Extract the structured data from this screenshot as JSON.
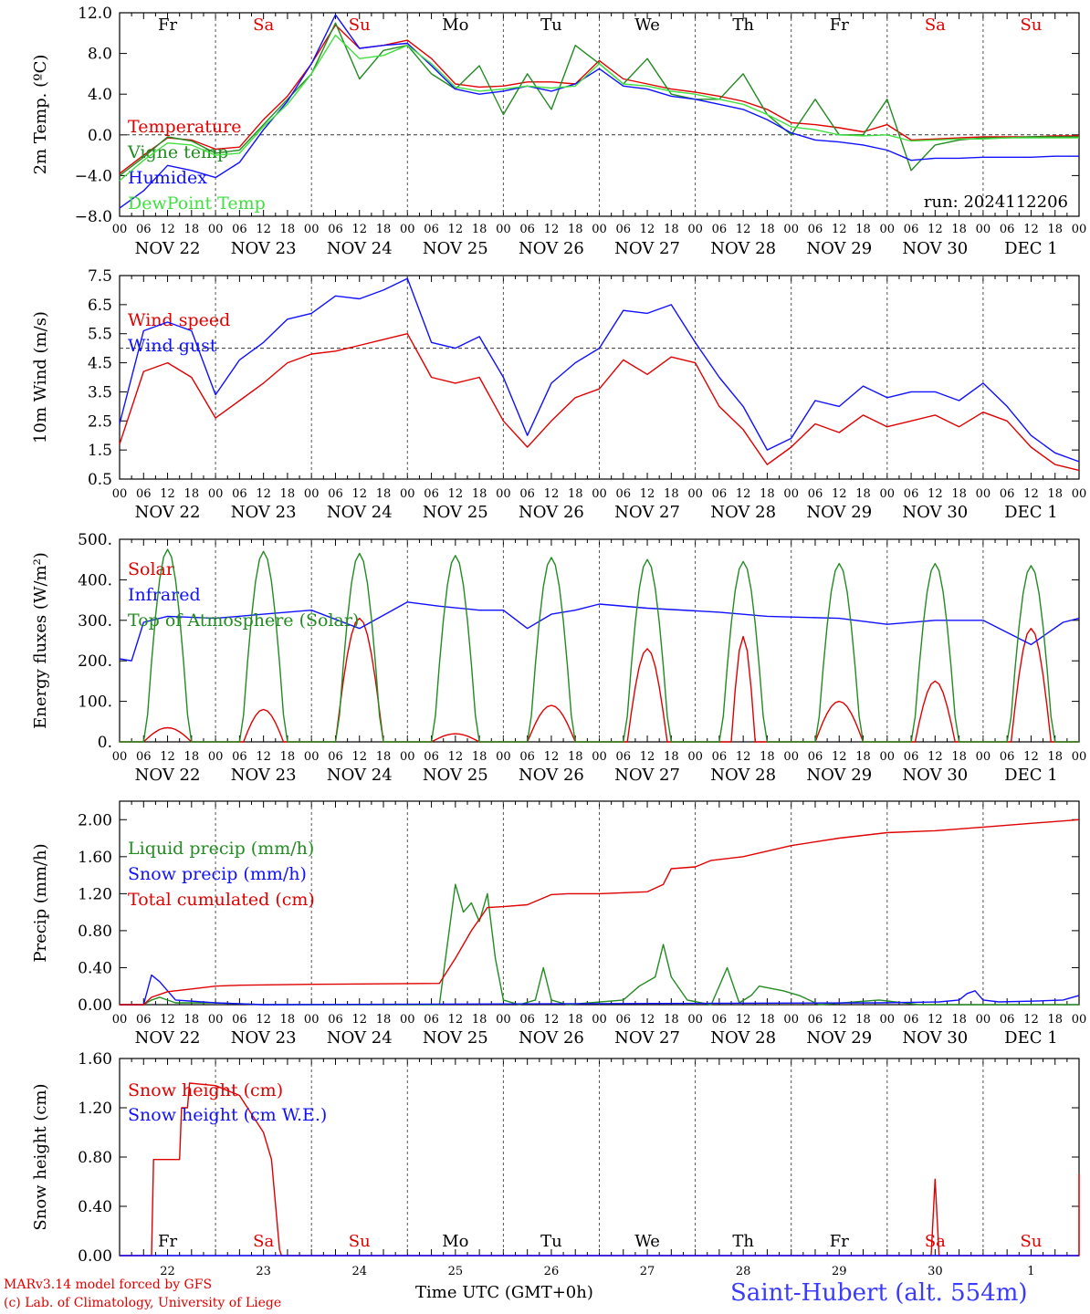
{
  "colors": {
    "red": "#e00000",
    "dark_green": "#228B22",
    "blue": "#1010ff",
    "light_green": "#40e040",
    "axis": "#000000"
  },
  "x_axis": {
    "hour_ticks": [
      "00",
      "06",
      "12",
      "18"
    ],
    "dates": [
      "NOV 22",
      "NOV 23",
      "NOV 24",
      "NOV 25",
      "NOV 26",
      "NOV 27",
      "NOV 28",
      "NOV 29",
      "NOV 30",
      "DEC  1"
    ],
    "day_numbers": [
      "22",
      "23",
      "24",
      "25",
      "26",
      "27",
      "28",
      "29",
      "30",
      "1"
    ],
    "weekdays": [
      {
        "label": "Fr",
        "color": "#000000"
      },
      {
        "label": "Sa",
        "color": "#e00000"
      },
      {
        "label": "Su",
        "color": "#e00000"
      },
      {
        "label": "Mo",
        "color": "#000000"
      },
      {
        "label": "Tu",
        "color": "#000000"
      },
      {
        "label": "We",
        "color": "#000000"
      },
      {
        "label": "Th",
        "color": "#000000"
      },
      {
        "label": "Fr",
        "color": "#000000"
      },
      {
        "label": "Sa",
        "color": "#e00000"
      },
      {
        "label": "Su",
        "color": "#e00000"
      }
    ],
    "title": "Time UTC (GMT+0h)"
  },
  "footer": {
    "credit_line1": "MARv3.14 model forced by GFS",
    "credit_line2": "(c) Lab. of Climatology, University of Liege",
    "station": "Saint-Hubert (alt. 554m)"
  },
  "chart_data": [
    {
      "type": "line",
      "ylabel": "2m Temp. (ºC)",
      "ylim": [
        -8,
        12
      ],
      "yticks": [
        "12.0",
        "8.0",
        "4.0",
        "0.0",
        "−4.0",
        "−8.0"
      ],
      "ytick_values": [
        12,
        8,
        4,
        0,
        -4,
        -8
      ],
      "hline": 0,
      "run_label": "run: 2024112206",
      "x_hours": [
        0,
        6,
        12,
        18,
        24,
        30,
        36,
        42,
        48,
        54,
        60,
        66,
        72,
        78,
        84,
        90,
        96,
        102,
        108,
        114,
        120,
        126,
        132,
        138,
        144,
        150,
        156,
        162,
        168,
        174,
        180,
        186,
        192,
        198,
        204,
        210,
        216,
        222,
        228,
        234,
        240
      ],
      "series": [
        {
          "name": "Temperature",
          "color": "red",
          "values": [
            -3.8,
            -2.0,
            -0.3,
            -0.5,
            -1.4,
            -1.2,
            1.5,
            3.8,
            7.0,
            10.8,
            8.5,
            8.8,
            9.3,
            7.5,
            5.0,
            4.7,
            4.8,
            5.2,
            5.2,
            5.0,
            7.3,
            5.5,
            5.0,
            4.5,
            4.2,
            3.8,
            3.3,
            2.5,
            1.2,
            1.0,
            0.7,
            0.3,
            1.0,
            -0.5,
            -0.4,
            -0.3,
            -0.2,
            -0.2,
            -0.2,
            -0.1,
            -0.1
          ]
        },
        {
          "name": "Vigne temp",
          "color": "dark_green",
          "values": [
            -4.0,
            -2.2,
            -0.2,
            -0.6,
            -1.8,
            -1.5,
            1.0,
            3.5,
            6.0,
            11.0,
            5.5,
            8.3,
            8.8,
            6.0,
            4.5,
            6.8,
            2.0,
            6.0,
            2.5,
            8.8,
            7.0,
            5.0,
            7.5,
            4.0,
            3.5,
            3.5,
            6.0,
            2.0,
            0.0,
            3.5,
            0.0,
            0.0,
            3.5,
            -3.5,
            -1.0,
            -0.5,
            -0.3,
            -0.3,
            -0.2,
            -0.2,
            -0.2
          ]
        },
        {
          "name": "Humidex",
          "color": "blue",
          "values": [
            -7.2,
            -5.5,
            -3.0,
            -3.5,
            -4.2,
            -2.7,
            0.5,
            3.3,
            7.0,
            11.8,
            8.5,
            8.8,
            9.0,
            6.8,
            4.5,
            4.0,
            4.3,
            4.8,
            4.3,
            5.0,
            6.5,
            4.8,
            4.5,
            3.8,
            3.5,
            3.0,
            2.5,
            1.5,
            0.2,
            -0.5,
            -0.7,
            -1.0,
            -1.5,
            -2.5,
            -2.3,
            -2.3,
            -2.2,
            -2.2,
            -2.2,
            -2.1,
            -2.1
          ]
        },
        {
          "name": "DewPoint Temp",
          "color": "light_green",
          "values": [
            -4.5,
            -2.5,
            -0.8,
            -1.0,
            -2.0,
            -1.8,
            0.8,
            3.0,
            6.0,
            9.8,
            7.5,
            7.8,
            8.8,
            7.0,
            4.7,
            4.3,
            4.5,
            4.8,
            4.6,
            4.8,
            7.0,
            5.0,
            4.8,
            4.3,
            4.0,
            3.5,
            3.0,
            2.0,
            0.8,
            0.5,
            0.0,
            -0.1,
            0.0,
            -0.6,
            -0.5,
            -0.4,
            -0.4,
            -0.3,
            -0.3,
            -0.3,
            -0.3
          ]
        }
      ]
    },
    {
      "type": "line",
      "ylabel": "10m Wind (m/s)",
      "ylim": [
        0.5,
        7.5
      ],
      "yticks": [
        "7.5",
        "6.5",
        "5.5",
        "4.5",
        "3.5",
        "2.5",
        "1.5",
        "0.5"
      ],
      "ytick_values": [
        7.5,
        6.5,
        5.5,
        4.5,
        3.5,
        2.5,
        1.5,
        0.5
      ],
      "hline": 5.0,
      "x_hours": [
        0,
        6,
        12,
        18,
        24,
        30,
        36,
        42,
        48,
        54,
        60,
        66,
        72,
        78,
        84,
        90,
        96,
        102,
        108,
        114,
        120,
        126,
        132,
        138,
        144,
        150,
        156,
        162,
        168,
        174,
        180,
        186,
        192,
        198,
        204,
        210,
        216,
        222,
        228,
        234,
        240
      ],
      "series": [
        {
          "name": "Wind speed",
          "color": "red",
          "values": [
            1.7,
            4.2,
            4.5,
            4.0,
            2.6,
            3.2,
            3.8,
            4.5,
            4.8,
            4.9,
            5.1,
            5.3,
            5.5,
            4.0,
            3.8,
            4.0,
            2.5,
            1.6,
            2.5,
            3.3,
            3.6,
            4.6,
            4.1,
            4.7,
            4.5,
            3.0,
            2.2,
            1.0,
            1.6,
            2.4,
            2.1,
            2.7,
            2.3,
            2.5,
            2.7,
            2.3,
            2.8,
            2.5,
            1.6,
            1.0,
            0.8
          ]
        },
        {
          "name": "Wind gust",
          "color": "blue",
          "values": [
            2.4,
            5.6,
            5.9,
            5.6,
            3.4,
            4.6,
            5.2,
            6.0,
            6.2,
            6.8,
            6.7,
            7.0,
            7.4,
            5.2,
            5.0,
            5.4,
            4.0,
            2.0,
            3.8,
            4.5,
            5.0,
            6.3,
            6.2,
            6.5,
            5.2,
            4.0,
            3.0,
            1.5,
            1.9,
            3.2,
            3.0,
            3.7,
            3.3,
            3.5,
            3.5,
            3.2,
            3.8,
            3.0,
            2.0,
            1.4,
            1.1
          ]
        }
      ]
    },
    {
      "type": "line",
      "ylabel": "Energy fluxes (W/m²)",
      "ylim": [
        0,
        500
      ],
      "yticks": [
        "500.",
        "400.",
        "300.",
        "200.",
        "100.",
        "0."
      ],
      "ytick_values": [
        500,
        400,
        300,
        200,
        100,
        0
      ],
      "hline": null,
      "series": [
        {
          "name": "Solar",
          "color": "red",
          "peaks": [
            35,
            80,
            305,
            20,
            90,
            230,
            260,
            100,
            150,
            280
          ],
          "peak_widths": [
            6,
            5,
            6,
            6,
            6,
            5,
            3,
            6,
            5,
            5
          ]
        },
        {
          "name": "Infrared",
          "color": "blue",
          "x_hours": [
            0,
            3,
            6,
            12,
            24,
            36,
            48,
            60,
            72,
            80,
            90,
            96,
            102,
            108,
            114,
            120,
            132,
            150,
            162,
            180,
            192,
            204,
            216,
            228,
            236,
            240
          ],
          "values": [
            205,
            200,
            295,
            310,
            305,
            315,
            325,
            280,
            345,
            335,
            325,
            325,
            280,
            315,
            325,
            340,
            330,
            320,
            310,
            305,
            290,
            300,
            300,
            240,
            295,
            305
          ]
        },
        {
          "name": "Top of Atmosphere (Solar)",
          "color": "dark_green",
          "peaks": [
            475,
            470,
            465,
            460,
            455,
            450,
            445,
            440,
            440,
            435
          ]
        }
      ]
    },
    {
      "type": "line",
      "ylabel": "Precip (mm/h)",
      "ylim": [
        0,
        2.2
      ],
      "yticks": [
        "2.00",
        "1.60",
        "1.20",
        "0.80",
        "0.40",
        "0.00"
      ],
      "ytick_values": [
        2.0,
        1.6,
        1.2,
        0.8,
        0.4,
        0.0
      ],
      "hline": null,
      "series": [
        {
          "name": "Liquid precip (mm/h)",
          "color": "dark_green",
          "x_hours": [
            0,
            6,
            8,
            10,
            14,
            24,
            30,
            36,
            80,
            84,
            86,
            88,
            90,
            92,
            94,
            96,
            100,
            104,
            106,
            108,
            112,
            126,
            130,
            134,
            136,
            138,
            142,
            148,
            152,
            155,
            158,
            160,
            166,
            170,
            175,
            190,
            200,
            240
          ],
          "values": [
            0,
            0,
            0.05,
            0.08,
            0.02,
            0.02,
            0.01,
            0,
            0,
            1.3,
            1.0,
            1.1,
            0.9,
            1.2,
            0.5,
            0.05,
            0,
            0.05,
            0.4,
            0.05,
            0,
            0.05,
            0.2,
            0.3,
            0.65,
            0.3,
            0.05,
            0,
            0.4,
            0.02,
            0.1,
            0.2,
            0.15,
            0.1,
            0,
            0.05,
            0,
            0
          ]
        },
        {
          "name": "Snow precip (mm/h)",
          "color": "blue",
          "x_hours": [
            0,
            6,
            8,
            10,
            14,
            24,
            36,
            190,
            205,
            210,
            212,
            214,
            216,
            220,
            230,
            236,
            240
          ],
          "values": [
            0,
            0,
            0.32,
            0.25,
            0.05,
            0.02,
            0,
            0.02,
            0.03,
            0.05,
            0.12,
            0.15,
            0.05,
            0.03,
            0.04,
            0.05,
            0.1
          ]
        },
        {
          "name": "Total cumulated (cm)",
          "color": "red",
          "x_hours": [
            0,
            6,
            8,
            12,
            18,
            24,
            30,
            48,
            80,
            84,
            88,
            92,
            96,
            102,
            108,
            112,
            120,
            132,
            136,
            138,
            144,
            148,
            156,
            168,
            180,
            192,
            204,
            216,
            228,
            240
          ],
          "values": [
            0,
            0,
            0.08,
            0.14,
            0.17,
            0.2,
            0.21,
            0.22,
            0.23,
            0.5,
            0.8,
            1.05,
            1.06,
            1.08,
            1.19,
            1.2,
            1.2,
            1.22,
            1.3,
            1.47,
            1.49,
            1.56,
            1.6,
            1.72,
            1.8,
            1.86,
            1.88,
            1.92,
            1.96,
            2.0
          ]
        }
      ]
    },
    {
      "type": "line",
      "ylabel": "Snow height (cm)",
      "ylim": [
        0,
        1.6
      ],
      "yticks": [
        "1.60",
        "1.20",
        "0.80",
        "0.40",
        "0.00"
      ],
      "ytick_values": [
        1.6,
        1.2,
        0.8,
        0.4,
        0.0
      ],
      "hline": null,
      "series": [
        {
          "name": "Snow height (cm)",
          "color": "red",
          "x_hours": [
            0,
            8,
            8.5,
            15,
            15.5,
            17,
            17.5,
            24,
            30,
            36,
            38,
            40,
            40.5,
            190,
            203,
            204,
            205,
            240,
            241,
            242
          ],
          "values": [
            0,
            0,
            0.78,
            0.78,
            1.2,
            1.2,
            1.4,
            1.38,
            1.3,
            1.0,
            0.78,
            0.05,
            0,
            0,
            0,
            0.62,
            0,
            0,
            0.66,
            0.65
          ]
        },
        {
          "name": "Snow height (cm W.E.)",
          "color": "blue",
          "x_hours": [
            0,
            242
          ],
          "values": [
            0,
            0
          ]
        }
      ]
    }
  ]
}
